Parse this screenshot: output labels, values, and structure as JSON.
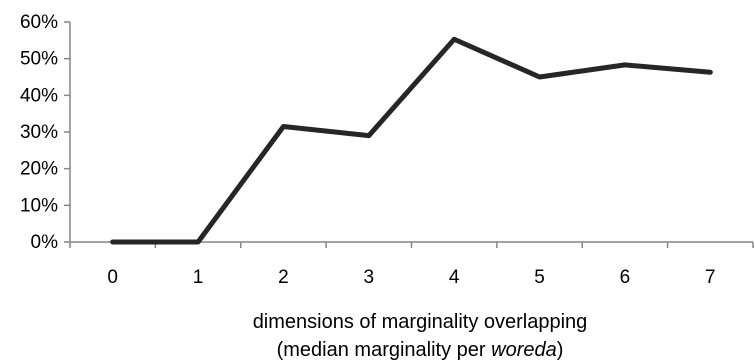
{
  "chart_data": {
    "type": "line",
    "title": "",
    "x": [
      "0",
      "1",
      "2",
      "3",
      "4",
      "5",
      "6",
      "7"
    ],
    "series": [
      {
        "values": [
          0,
          0,
          31.5,
          29,
          55.3,
          45,
          48.3,
          46.3
        ]
      }
    ],
    "y_tick_labels": [
      "0%",
      "10%",
      "20%",
      "30%",
      "40%",
      "50%",
      "60%"
    ],
    "ylim": [
      0,
      60
    ],
    "y_unit": "%",
    "xlabel_line1": "dimensions of marginality overlapping",
    "xlabel_line2_prefix": "(median marginality per ",
    "xlabel_line2_italic": "woreda",
    "xlabel_line2_suffix": ")",
    "ylabel": "",
    "grid": false,
    "legend": "none",
    "line_color": "#262626",
    "axis_color": "#868686"
  }
}
